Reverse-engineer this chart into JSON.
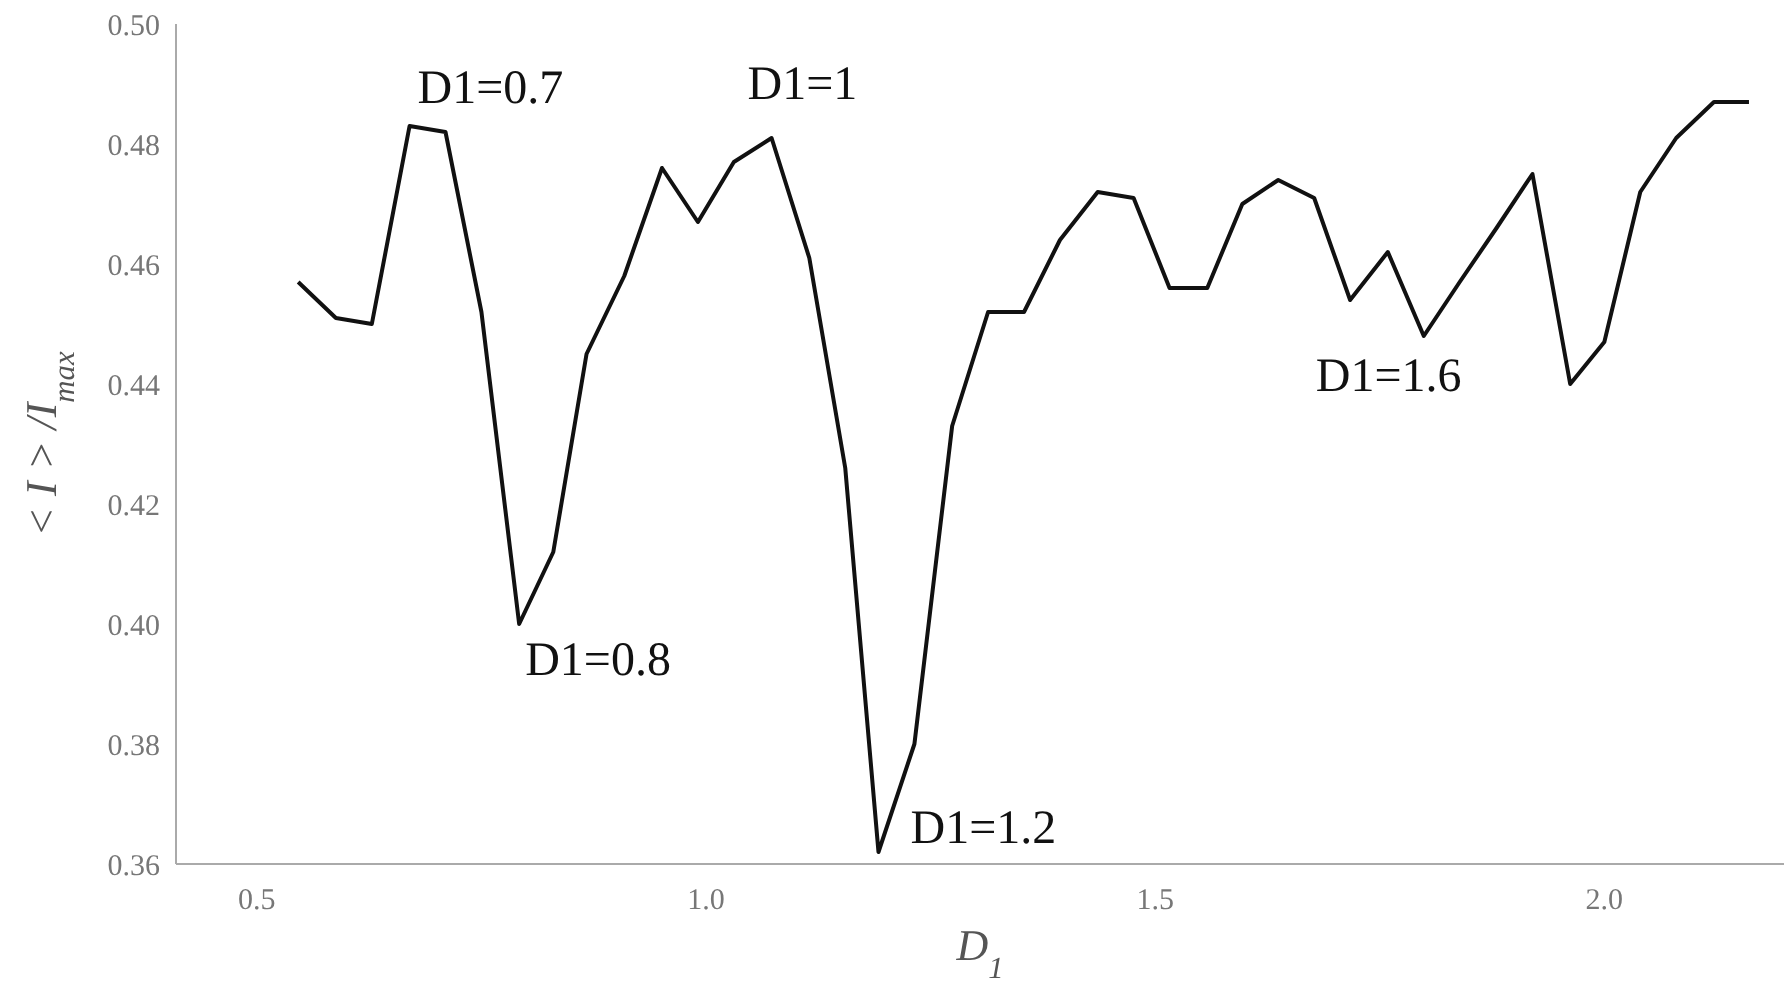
{
  "chart_data": {
    "type": "line",
    "xlabel": "D$_{1}$",
    "ylabel": "< I > /I$_{max}$",
    "series": [
      {
        "color": "#111111",
        "x": [
          0.546,
          0.588,
          0.628,
          0.67,
          0.71,
          0.75,
          0.792,
          0.83,
          0.867,
          0.909,
          0.951,
          0.991,
          1.031,
          1.073,
          1.115,
          1.155,
          1.192,
          1.232,
          1.274,
          1.314,
          1.354,
          1.394,
          1.436,
          1.476,
          1.516,
          1.558,
          1.597,
          1.637,
          1.677,
          1.717,
          1.759,
          1.799,
          1.839,
          1.88,
          1.92,
          1.962,
          2.0,
          2.04,
          2.08,
          2.122,
          2.161
        ],
        "values": [
          0.457,
          0.451,
          0.45,
          0.483,
          0.482,
          0.452,
          0.4,
          0.412,
          0.445,
          0.458,
          0.476,
          0.467,
          0.477,
          0.481,
          0.461,
          0.426,
          0.362,
          0.38,
          0.433,
          0.452,
          0.452,
          0.464,
          0.472,
          0.471,
          0.456,
          0.456,
          0.47,
          0.474,
          0.471,
          0.454,
          0.462,
          0.448,
          0.457,
          0.466,
          0.475,
          0.44,
          0.447,
          0.472,
          0.481,
          0.487,
          0.487
        ]
      }
    ],
    "xlim": [
      0.41,
      2.2
    ],
    "xticks": [
      0.5,
      {
        "value": 1,
        "label": "1.0"
      },
      1.5,
      {
        "value": 2,
        "label": "2.0"
      }
    ],
    "ylim": [
      0.36,
      0.5
    ],
    "yticks": [
      0.36,
      0.38,
      {
        "value": 0.4,
        "label": "0.40"
      },
      0.42,
      0.44,
      0.46,
      0.48,
      {
        "value": 0.5,
        "label": "0.50"
      }
    ],
    "grid": false,
    "marker": "none",
    "line_style": "solid",
    "annotations": [
      {
        "text": "D1=0.7",
        "x": 0.67,
        "y": 0.483
      },
      {
        "text": "D1=1",
        "x": 1.073,
        "y": 0.481
      },
      {
        "text": "D1=0.8",
        "x": 0.792,
        "y": 0.4
      },
      {
        "text": "D1=1.2",
        "x": 1.192,
        "y": 0.362
      },
      {
        "text": "D1=1.6",
        "x": 1.799,
        "y": 0.448
      }
    ]
  }
}
